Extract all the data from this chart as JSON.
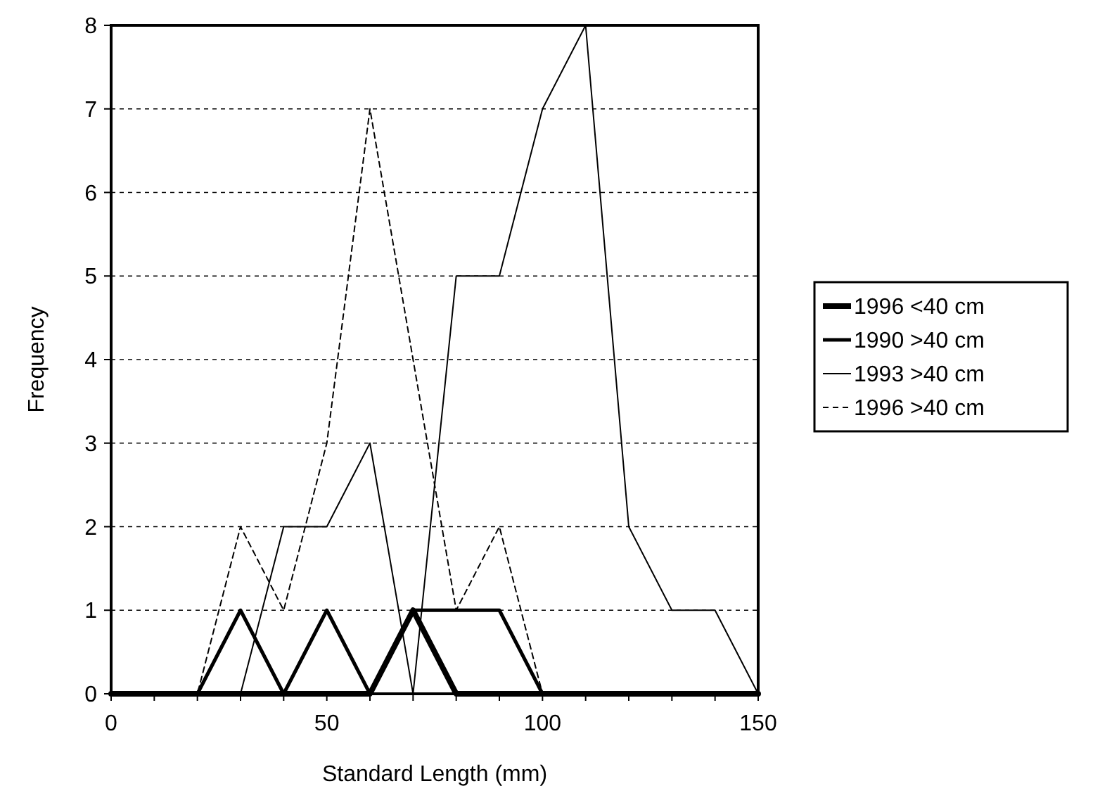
{
  "chart_data": {
    "type": "line",
    "xlabel": "Standard Length (mm)",
    "ylabel": "Frequency",
    "x": [
      0,
      10,
      20,
      30,
      40,
      50,
      60,
      70,
      80,
      90,
      100,
      110,
      120,
      130,
      140,
      150
    ],
    "series": [
      {
        "name": "1996 <40 cm",
        "color": "#000000",
        "line_style": "solid",
        "values": [
          0,
          0,
          0,
          0,
          0,
          0,
          0,
          1,
          0,
          0,
          0,
          0,
          0,
          0,
          0,
          0
        ]
      },
      {
        "name": "1990 >40 cm",
        "color": "#000000",
        "line_style": "solid",
        "values": [
          0,
          0,
          0,
          1,
          0,
          1,
          0,
          1,
          1,
          1,
          0,
          0,
          0,
          0,
          0,
          0
        ]
      },
      {
        "name": "1993 >40 cm",
        "color": "#000000",
        "line_style": "solid",
        "values": [
          0,
          0,
          0,
          0,
          2,
          2,
          3,
          0,
          5,
          5,
          7,
          8,
          2,
          1,
          1,
          0
        ]
      },
      {
        "name": "1996 >40 cm",
        "color": "#000000",
        "line_style": "dashed",
        "values": [
          0,
          0,
          0,
          2,
          1,
          3,
          7,
          4,
          1,
          2,
          0,
          0,
          0,
          0,
          0,
          0
        ]
      }
    ],
    "xlim": [
      0,
      150
    ],
    "xticks": [
      0,
      50,
      100,
      150
    ],
    "ylim": [
      0,
      8
    ],
    "yticks": [
      0,
      1,
      2,
      3,
      4,
      5,
      6,
      7,
      8
    ],
    "grid": "y",
    "legend": "right",
    "marker": "none"
  }
}
